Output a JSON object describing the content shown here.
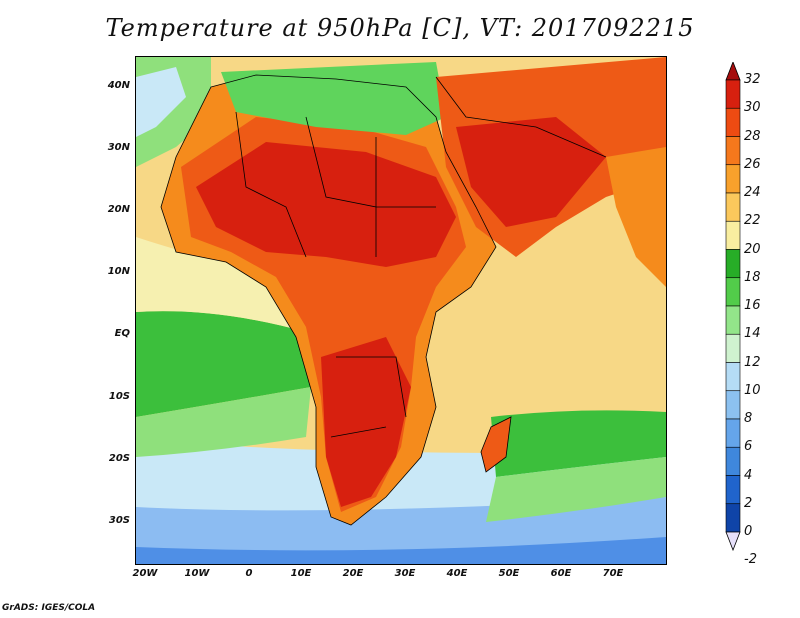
{
  "title": "Temperature at 950hPa [C], VT: 2017092215",
  "footer": "GrADS: IGES/COLA",
  "map": {
    "lat_labels": [
      "40N",
      "30N",
      "20N",
      "10N",
      "EQ",
      "10S",
      "20S",
      "30S"
    ],
    "lon_labels": [
      "20W",
      "10W",
      "0",
      "10E",
      "20E",
      "30E",
      "40E",
      "50E",
      "60E",
      "70E"
    ],
    "colors": {
      "ocean_south_deep": "#4f8fe6",
      "ocean_south_mid": "#8cbcf2",
      "ocean_south_light": "#c9e8f7",
      "ocean_green": "#3cbf3c",
      "ocean_lightgreen": "#8fe07c",
      "ocean_pale": "#f6f0b0",
      "ocean_tan": "#f7d886",
      "land_hot": "#d7200f",
      "land_warm": "#ee5a16",
      "land_orange": "#f58b1c",
      "mediterranean": "#5fd45c",
      "border": "#000000"
    }
  },
  "colorbar": {
    "labels": [
      "32",
      "30",
      "28",
      "26",
      "24",
      "22",
      "20",
      "18",
      "16",
      "14",
      "12",
      "10",
      "8",
      "6",
      "4",
      "2",
      "0",
      "-2"
    ],
    "colors": [
      "#a50d0d",
      "#d7200f",
      "#ee4b12",
      "#f5781c",
      "#f8a12c",
      "#fbc85c",
      "#f9eea0",
      "#27ad27",
      "#52cc4a",
      "#93e58a",
      "#cff2cf",
      "#b5dcf5",
      "#8cc1f0",
      "#65a5ea",
      "#3f87dc",
      "#2064cc",
      "#0f44a8",
      "#0a2980"
    ]
  }
}
